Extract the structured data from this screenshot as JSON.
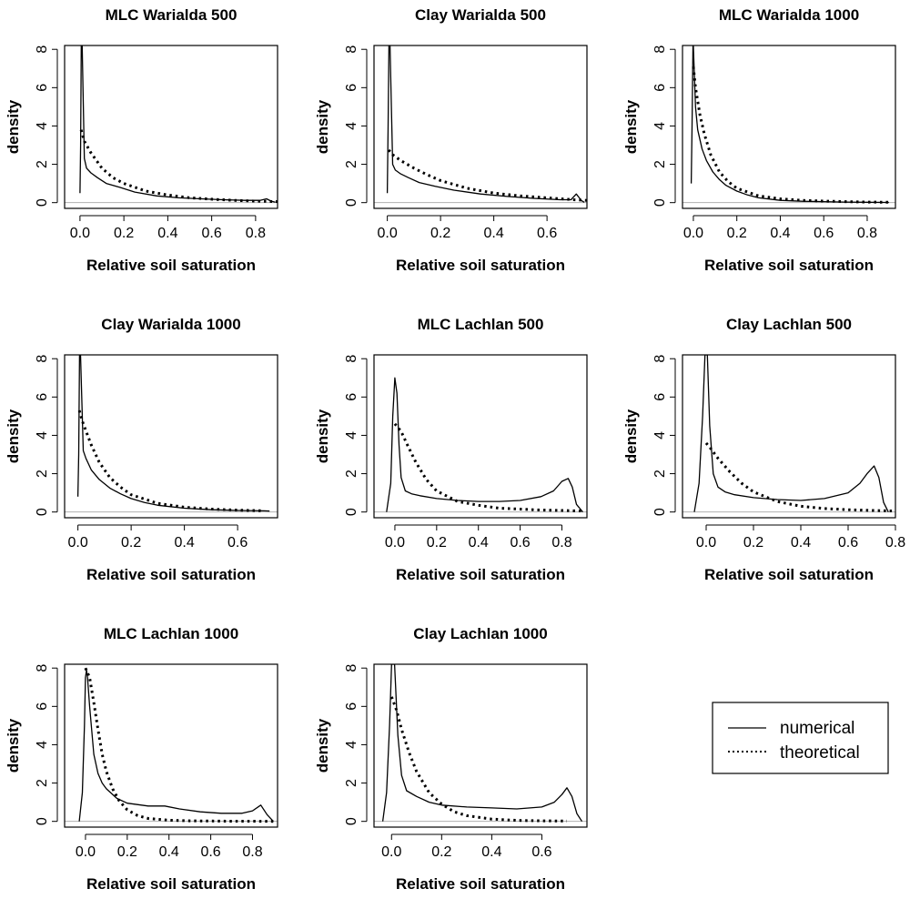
{
  "legend": {
    "numerical_label": "numerical",
    "theoretical_label": "theoretical"
  },
  "chart_data": [
    {
      "type": "line",
      "title": "MLC Warialda 500",
      "xlabel": "Relative soil saturation",
      "ylabel": "density",
      "xlim": [
        -0.07,
        0.9
      ],
      "ylim": [
        -0.3,
        8.2
      ],
      "xticks": [
        "0.0",
        "0.2",
        "0.4",
        "0.6",
        "0.8"
      ],
      "yticks": [
        "0",
        "2",
        "4",
        "6",
        "8"
      ],
      "series": [
        {
          "name": "numerical",
          "x": [
            0.0,
            0.003,
            0.006,
            0.01,
            0.02,
            0.03,
            0.05,
            0.08,
            0.12,
            0.18,
            0.25,
            0.35,
            0.45,
            0.55,
            0.65,
            0.75,
            0.82,
            0.85,
            0.87,
            0.89
          ],
          "y": [
            0.5,
            3.0,
            8.2,
            8.2,
            2.3,
            1.8,
            1.55,
            1.3,
            1.0,
            0.8,
            0.55,
            0.35,
            0.25,
            0.2,
            0.15,
            0.12,
            0.12,
            0.2,
            0.08,
            0.02
          ]
        },
        {
          "name": "theoretical",
          "x": [
            0.005,
            0.02,
            0.05,
            0.1,
            0.15,
            0.2,
            0.3,
            0.4,
            0.5,
            0.6,
            0.7,
            0.8,
            0.9
          ],
          "y": [
            3.8,
            3.2,
            2.6,
            1.8,
            1.3,
            1.0,
            0.6,
            0.4,
            0.25,
            0.18,
            0.12,
            0.08,
            0.05
          ]
        }
      ]
    },
    {
      "type": "line",
      "title": "Clay Warialda 500",
      "xlabel": "Relative soil saturation",
      "ylabel": "density",
      "xlim": [
        -0.05,
        0.75
      ],
      "ylim": [
        -0.3,
        8.2
      ],
      "xticks": [
        "0.0",
        "0.2",
        "0.4",
        "0.6"
      ],
      "yticks": [
        "0",
        "2",
        "4",
        "6",
        "8"
      ],
      "series": [
        {
          "name": "numerical",
          "x": [
            0.0,
            0.003,
            0.006,
            0.01,
            0.02,
            0.03,
            0.05,
            0.08,
            0.12,
            0.18,
            0.25,
            0.35,
            0.45,
            0.55,
            0.65,
            0.69,
            0.71,
            0.73,
            0.74
          ],
          "y": [
            0.5,
            4.0,
            8.2,
            8.2,
            2.0,
            1.7,
            1.5,
            1.3,
            1.05,
            0.85,
            0.65,
            0.45,
            0.32,
            0.22,
            0.15,
            0.15,
            0.45,
            0.1,
            0.02
          ]
        },
        {
          "name": "theoretical",
          "x": [
            0.005,
            0.02,
            0.05,
            0.1,
            0.15,
            0.2,
            0.3,
            0.4,
            0.5,
            0.6,
            0.7,
            0.75
          ],
          "y": [
            2.75,
            2.5,
            2.2,
            1.8,
            1.45,
            1.15,
            0.75,
            0.5,
            0.35,
            0.25,
            0.15,
            0.12
          ]
        }
      ]
    },
    {
      "type": "line",
      "title": "MLC Warialda 1000",
      "xlabel": "Relative soil saturation",
      "ylabel": "density",
      "xlim": [
        -0.05,
        0.93
      ],
      "ylim": [
        -0.3,
        8.2
      ],
      "xticks": [
        "0.0",
        "0.2",
        "0.4",
        "0.6",
        "0.8"
      ],
      "yticks": [
        "0",
        "2",
        "4",
        "6",
        "8"
      ],
      "series": [
        {
          "name": "numerical",
          "x": [
            -0.01,
            -0.006,
            -0.002,
            0.0,
            0.01,
            0.02,
            0.04,
            0.06,
            0.09,
            0.12,
            0.15,
            0.2,
            0.25,
            0.3,
            0.4,
            0.5,
            0.6,
            0.7,
            0.8,
            0.9
          ],
          "y": [
            1.0,
            4.0,
            8.2,
            8.2,
            5.0,
            3.8,
            2.8,
            2.2,
            1.6,
            1.2,
            0.9,
            0.6,
            0.4,
            0.25,
            0.12,
            0.07,
            0.05,
            0.03,
            0.02,
            0.01
          ]
        },
        {
          "name": "theoretical",
          "x": [
            0.0,
            0.01,
            0.03,
            0.05,
            0.08,
            0.12,
            0.16,
            0.2,
            0.3,
            0.4,
            0.5,
            0.6,
            0.7,
            0.8,
            0.9
          ],
          "y": [
            7.1,
            6.0,
            4.6,
            3.6,
            2.5,
            1.6,
            1.1,
            0.75,
            0.35,
            0.2,
            0.12,
            0.08,
            0.05,
            0.03,
            0.02
          ]
        }
      ]
    },
    {
      "type": "line",
      "title": "Clay Warialda 1000",
      "xlabel": "Relative soil saturation",
      "ylabel": "density",
      "xlim": [
        -0.05,
        0.75
      ],
      "ylim": [
        -0.3,
        8.2
      ],
      "xticks": [
        "0.0",
        "0.2",
        "0.4",
        "0.6"
      ],
      "yticks": [
        "0",
        "2",
        "4",
        "6",
        "8"
      ],
      "series": [
        {
          "name": "numerical",
          "x": [
            0.0,
            0.003,
            0.006,
            0.01,
            0.02,
            0.03,
            0.05,
            0.08,
            0.12,
            0.16,
            0.2,
            0.25,
            0.3,
            0.4,
            0.5,
            0.6,
            0.7,
            0.72
          ],
          "y": [
            0.8,
            3.0,
            8.2,
            8.2,
            3.2,
            2.8,
            2.2,
            1.7,
            1.25,
            0.95,
            0.7,
            0.5,
            0.35,
            0.2,
            0.12,
            0.08,
            0.06,
            0.05
          ]
        },
        {
          "name": "theoretical",
          "x": [
            0.005,
            0.02,
            0.05,
            0.08,
            0.12,
            0.16,
            0.2,
            0.3,
            0.4,
            0.5,
            0.6,
            0.7
          ],
          "y": [
            5.3,
            4.6,
            3.5,
            2.6,
            1.8,
            1.3,
            0.9,
            0.45,
            0.25,
            0.15,
            0.1,
            0.06
          ]
        }
      ]
    },
    {
      "type": "line",
      "title": "MLC Lachlan 500",
      "xlabel": "Relative soil saturation",
      "ylabel": "density",
      "xlim": [
        -0.1,
        0.92
      ],
      "ylim": [
        -0.3,
        8.2
      ],
      "xticks": [
        "0.0",
        "0.2",
        "0.4",
        "0.6",
        "0.8"
      ],
      "yticks": [
        "0",
        "2",
        "4",
        "6",
        "8"
      ],
      "series": [
        {
          "name": "numerical",
          "x": [
            -0.04,
            -0.02,
            -0.01,
            0.0,
            0.01,
            0.02,
            0.03,
            0.05,
            0.08,
            0.12,
            0.2,
            0.3,
            0.4,
            0.5,
            0.6,
            0.7,
            0.76,
            0.8,
            0.83,
            0.85,
            0.87,
            0.9
          ],
          "y": [
            0.0,
            1.5,
            5.0,
            7.0,
            6.2,
            3.5,
            1.8,
            1.1,
            0.95,
            0.85,
            0.7,
            0.6,
            0.55,
            0.55,
            0.6,
            0.8,
            1.1,
            1.6,
            1.75,
            1.3,
            0.4,
            0.0
          ]
        },
        {
          "name": "theoretical",
          "x": [
            0.0,
            0.03,
            0.06,
            0.1,
            0.15,
            0.2,
            0.3,
            0.4,
            0.5,
            0.6,
            0.7,
            0.8,
            0.9
          ],
          "y": [
            4.6,
            4.2,
            3.5,
            2.6,
            1.7,
            1.1,
            0.55,
            0.35,
            0.2,
            0.15,
            0.1,
            0.08,
            0.05
          ]
        }
      ]
    },
    {
      "type": "line",
      "title": "Clay Lachlan 500",
      "xlabel": "Relative soil saturation",
      "ylabel": "density",
      "xlim": [
        -0.1,
        0.8
      ],
      "ylim": [
        -0.3,
        8.2
      ],
      "xticks": [
        "0.0",
        "0.2",
        "0.4",
        "0.6",
        "0.8"
      ],
      "yticks": [
        "0",
        "2",
        "4",
        "6",
        "8"
      ],
      "series": [
        {
          "name": "numerical",
          "x": [
            -0.05,
            -0.03,
            -0.015,
            -0.005,
            0.0,
            0.005,
            0.015,
            0.03,
            0.05,
            0.08,
            0.12,
            0.2,
            0.3,
            0.4,
            0.5,
            0.6,
            0.65,
            0.68,
            0.71,
            0.73,
            0.75,
            0.77
          ],
          "y": [
            0.0,
            1.5,
            5.0,
            8.2,
            8.2,
            8.2,
            4.5,
            2.0,
            1.3,
            1.05,
            0.9,
            0.75,
            0.65,
            0.6,
            0.7,
            1.0,
            1.5,
            2.0,
            2.4,
            1.8,
            0.5,
            0.0
          ]
        },
        {
          "name": "theoretical",
          "x": [
            0.0,
            0.02,
            0.05,
            0.1,
            0.15,
            0.2,
            0.3,
            0.4,
            0.5,
            0.6,
            0.7,
            0.8
          ],
          "y": [
            3.6,
            3.3,
            2.8,
            2.1,
            1.5,
            1.05,
            0.55,
            0.3,
            0.18,
            0.12,
            0.08,
            0.05
          ]
        }
      ]
    },
    {
      "type": "line",
      "title": "MLC Lachlan 1000",
      "xlabel": "Relative soil saturation",
      "ylabel": "density",
      "xlim": [
        -0.1,
        0.92
      ],
      "ylim": [
        -0.3,
        8.2
      ],
      "xticks": [
        "0.0",
        "0.2",
        "0.4",
        "0.6",
        "0.8"
      ],
      "yticks": [
        "0",
        "2",
        "4",
        "6",
        "8"
      ],
      "series": [
        {
          "name": "numerical",
          "x": [
            -0.03,
            -0.015,
            -0.005,
            0.0,
            0.005,
            0.01,
            0.02,
            0.04,
            0.06,
            0.08,
            0.1,
            0.15,
            0.2,
            0.3,
            0.38,
            0.45,
            0.55,
            0.65,
            0.75,
            0.8,
            0.84,
            0.87,
            0.9
          ],
          "y": [
            0.0,
            1.5,
            5.0,
            7.5,
            7.9,
            7.5,
            6.0,
            3.5,
            2.5,
            2.0,
            1.7,
            1.2,
            0.95,
            0.8,
            0.8,
            0.65,
            0.5,
            0.42,
            0.42,
            0.55,
            0.85,
            0.35,
            0.0
          ]
        },
        {
          "name": "theoretical",
          "x": [
            0.0,
            0.02,
            0.04,
            0.06,
            0.08,
            0.1,
            0.13,
            0.16,
            0.2,
            0.25,
            0.3,
            0.4,
            0.5,
            0.6,
            0.7,
            0.8,
            0.9
          ],
          "y": [
            8.0,
            7.5,
            6.2,
            4.8,
            3.5,
            2.6,
            1.7,
            1.1,
            0.6,
            0.3,
            0.15,
            0.06,
            0.03,
            0.02,
            0.01,
            0.01,
            0.0
          ]
        }
      ]
    },
    {
      "type": "line",
      "title": "Clay Lachlan 1000",
      "xlabel": "Relative soil saturation",
      "ylabel": "density",
      "xlim": [
        -0.07,
        0.78
      ],
      "ylim": [
        -0.3,
        8.2
      ],
      "xticks": [
        "0.0",
        "0.2",
        "0.4",
        "0.6"
      ],
      "yticks": [
        "0",
        "2",
        "4",
        "6",
        "8"
      ],
      "series": [
        {
          "name": "numerical",
          "x": [
            -0.035,
            -0.02,
            -0.008,
            0.0,
            0.005,
            0.012,
            0.025,
            0.04,
            0.06,
            0.1,
            0.15,
            0.2,
            0.3,
            0.4,
            0.5,
            0.6,
            0.65,
            0.68,
            0.7,
            0.72,
            0.74,
            0.76
          ],
          "y": [
            0.0,
            1.5,
            5.0,
            8.2,
            8.2,
            8.2,
            4.5,
            2.4,
            1.6,
            1.3,
            1.0,
            0.85,
            0.75,
            0.7,
            0.65,
            0.75,
            1.0,
            1.4,
            1.75,
            1.3,
            0.4,
            0.0
          ]
        },
        {
          "name": "theoretical",
          "x": [
            0.0,
            0.02,
            0.04,
            0.07,
            0.1,
            0.15,
            0.2,
            0.25,
            0.3,
            0.4,
            0.5,
            0.6,
            0.7
          ],
          "y": [
            6.5,
            5.8,
            4.8,
            3.6,
            2.6,
            1.5,
            0.9,
            0.5,
            0.3,
            0.12,
            0.05,
            0.03,
            0.02
          ]
        }
      ]
    }
  ]
}
